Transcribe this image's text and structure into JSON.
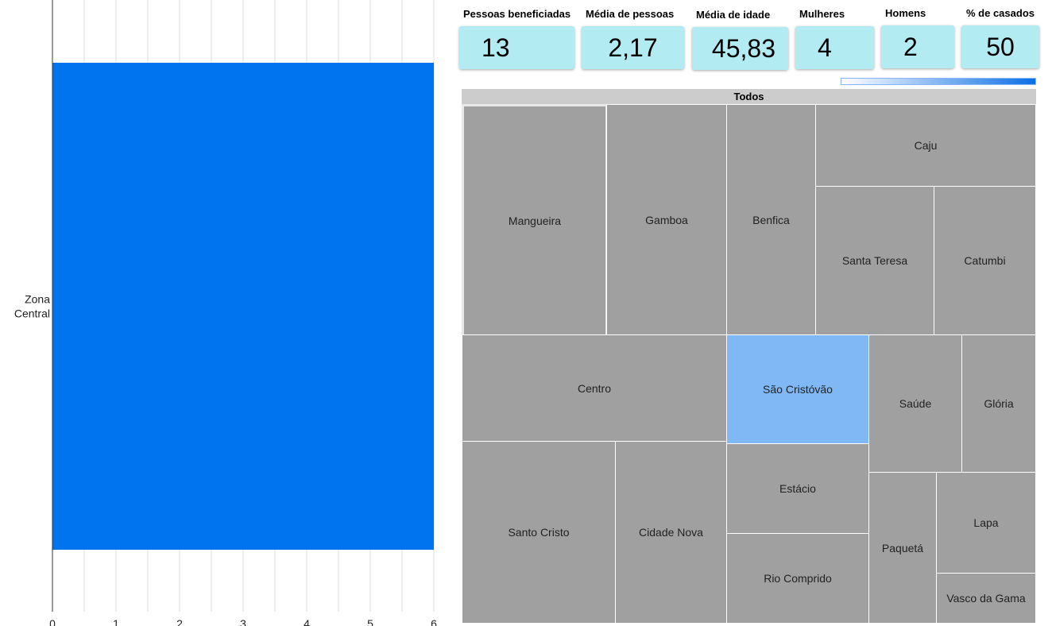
{
  "chart_data": {
    "type": "bar",
    "orientation": "horizontal",
    "categories": [
      "Zona\nCentral"
    ],
    "values": [
      6
    ],
    "xlim": [
      0,
      6
    ],
    "x_ticks": [
      "0",
      "1",
      "2",
      "3",
      "4",
      "5",
      "6"
    ],
    "grid": true,
    "bar_color": "#0073ee"
  },
  "kpis": [
    {
      "label": "Pessoas beneficiadas",
      "value": "13"
    },
    {
      "label": "Média de pessoas",
      "value": "2,17"
    },
    {
      "label": "Média de idade",
      "value": "45,83"
    },
    {
      "label": "Mulheres",
      "value": "4"
    },
    {
      "label": "Homens",
      "value": "2"
    },
    {
      "label": "% de casados",
      "value": "50"
    }
  ],
  "treemap": {
    "root_label": "Todos",
    "tiles": [
      "Mangueira",
      "Gamboa",
      "Benfica",
      "Caju",
      "Santa Teresa",
      "Catumbi",
      "Centro",
      "São Cristóvão",
      "Saúde",
      "Glória",
      "Estácio",
      "Santo Cristo",
      "Cidade Nova",
      "Paquetá",
      "Lapa",
      "Rio Comprido",
      "Vasco da Gama"
    ],
    "selected": "São Cristóvão",
    "hovered": "Mangueira",
    "colors": {
      "tile": "#a0a0a0",
      "selected": "#80b8f5",
      "header": "#cccccc"
    }
  }
}
